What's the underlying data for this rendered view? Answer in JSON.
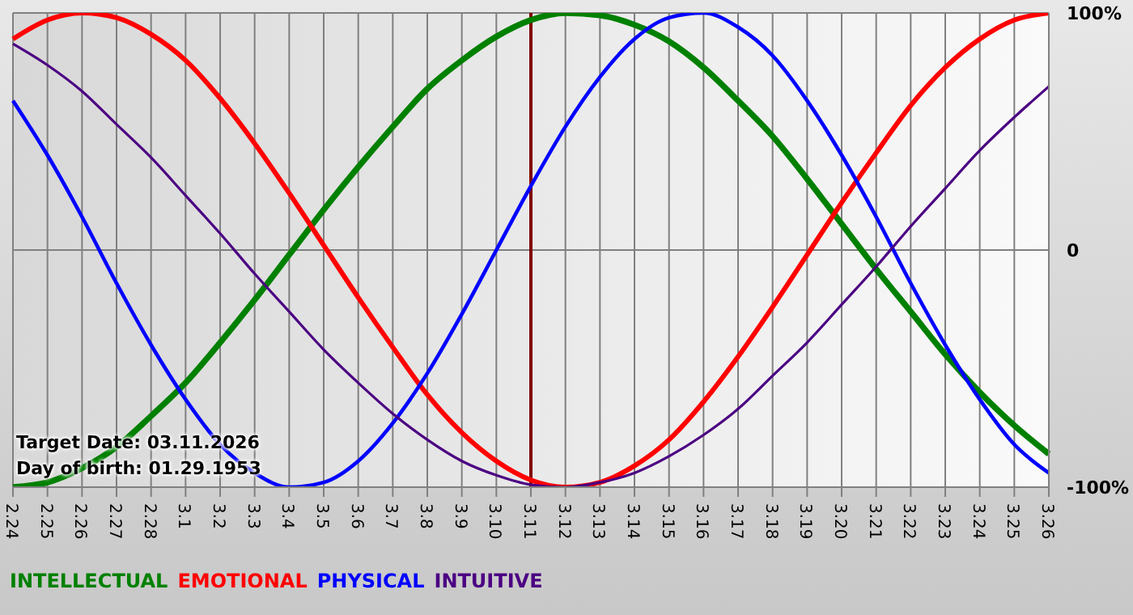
{
  "chart_data": {
    "type": "line",
    "categories": [
      "2.24",
      "2.25",
      "2.26",
      "2.27",
      "2.28",
      "3.1",
      "3.2",
      "3.3",
      "3.4",
      "3.5",
      "3.6",
      "3.7",
      "3.8",
      "3.9",
      "3.10",
      "3.11",
      "3.12",
      "3.13",
      "3.14",
      "3.15",
      "3.16",
      "3.17",
      "3.18",
      "3.19",
      "3.20",
      "3.21",
      "3.22",
      "3.23",
      "3.24",
      "3.25",
      "3.26"
    ],
    "series": [
      {
        "name": "INTELLECTUAL",
        "color": "#008000",
        "values": [
          -100,
          -98,
          -92,
          -83,
          -70,
          -56,
          -39,
          -21,
          -2,
          17,
          35,
          52,
          68,
          80,
          90,
          97,
          100,
          99,
          95,
          88,
          77,
          63,
          48,
          30,
          11,
          -8,
          -26,
          -44,
          -60,
          -74,
          -86
        ]
      },
      {
        "name": "EMOTIONAL",
        "color": "#ff0000",
        "values": [
          89,
          97,
          100,
          98,
          91,
          80,
          64,
          45,
          24,
          2,
          -20,
          -41,
          -61,
          -77,
          -89,
          -97,
          -100,
          -98,
          -91,
          -80,
          -64,
          -45,
          -24,
          -2,
          20,
          41,
          61,
          77,
          89,
          97,
          100
        ]
      },
      {
        "name": "PHYSICAL",
        "color": "#0000ff",
        "values": [
          63,
          40,
          14,
          -14,
          -40,
          -63,
          -82,
          -94,
          -100,
          -98,
          -89,
          -73,
          -52,
          -27,
          0,
          27,
          52,
          73,
          89,
          98,
          100,
          94,
          82,
          63,
          40,
          14,
          -14,
          -40,
          -63,
          -82,
          -94
        ]
      },
      {
        "name": "INTUITIVE",
        "color": "#4b0082",
        "values": [
          87,
          78,
          67,
          53,
          39,
          23,
          7,
          -10,
          -26,
          -42,
          -56,
          -69,
          -80,
          -89,
          -95,
          -99,
          -100,
          -98,
          -94,
          -87,
          -78,
          -67,
          -53,
          -39,
          -23,
          -7,
          10,
          26,
          42,
          56,
          69
        ]
      }
    ],
    "ylim": [
      -100,
      100
    ],
    "yticks": [
      {
        "value": -100,
        "label": "-100%"
      },
      0,
      {
        "value": 100,
        "label": "100%"
      }
    ],
    "grid": true,
    "legend": "bottom left",
    "marker": "none",
    "line_style": "solid",
    "ref_lines": [
      {
        "axis": "x",
        "value": "3.11",
        "color": "#800000"
      }
    ],
    "annotations": [
      "Target Date: 03.11.2026",
      "Day of birth: 01.29.1953"
    ]
  }
}
